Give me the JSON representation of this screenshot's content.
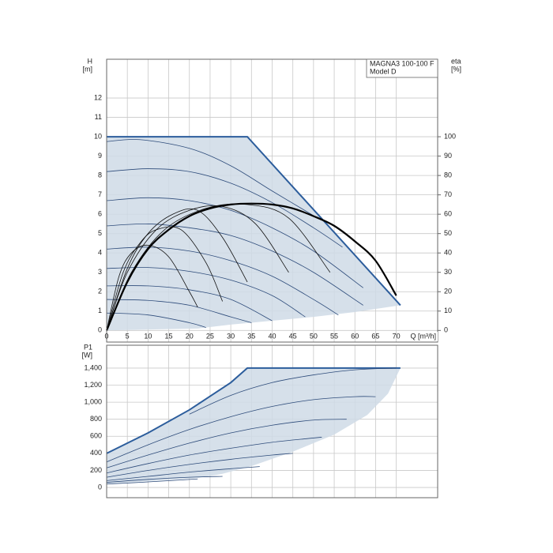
{
  "chart_data": [
    {
      "type": "line",
      "annotation": [
        "MAGNA3 100-100 F",
        "Model D"
      ],
      "y_label": [
        "H",
        "[m]"
      ],
      "y2_label": [
        "eta",
        "[%]"
      ],
      "x_label": "Q [m³/h]",
      "xlim": [
        0,
        80
      ],
      "xticks": [
        0,
        5,
        10,
        15,
        20,
        25,
        30,
        35,
        40,
        45,
        50,
        55,
        60,
        65,
        70
      ],
      "ylim": [
        -0.6,
        14
      ],
      "yticks": [
        0,
        1,
        2,
        3,
        4,
        5,
        6,
        7,
        8,
        9,
        10,
        11,
        12
      ],
      "y2lim": [
        -6,
        140
      ],
      "y2ticks": [
        0,
        10,
        20,
        30,
        40,
        50,
        60,
        70,
        80,
        90,
        100
      ],
      "grid": true,
      "series": [
        {
          "style": "area",
          "color": "#2c5d9c",
          "fill": "#cfdbe6",
          "x": [
            0,
            34,
            71,
            60,
            50,
            40,
            30,
            22,
            0
          ],
          "values": [
            10,
            10,
            1.3,
            0.95,
            0.7,
            0.5,
            0.3,
            0.1,
            0
          ]
        },
        {
          "style": "thin",
          "color": "#2d4b7a",
          "x": [
            0,
            8,
            20,
            30,
            40,
            51
          ],
          "values": [
            9.75,
            9.85,
            9.4,
            8.5,
            7.2,
            5.8
          ]
        },
        {
          "style": "thin",
          "color": "#2d4b7a",
          "x": [
            0,
            10,
            20,
            30,
            40,
            50,
            57
          ],
          "values": [
            8.2,
            8.35,
            8.2,
            7.6,
            6.6,
            5.3,
            4.3
          ]
        },
        {
          "style": "thin",
          "color": "#2d4b7a",
          "x": [
            0,
            10,
            20,
            30,
            40,
            50,
            62
          ],
          "values": [
            6.7,
            6.85,
            6.7,
            6.2,
            5.3,
            4.1,
            2.2
          ]
        },
        {
          "style": "thin",
          "color": "#2d4b7a",
          "x": [
            0,
            10,
            20,
            30,
            40,
            50,
            62
          ],
          "values": [
            5.4,
            5.5,
            5.3,
            4.9,
            4.1,
            3.0,
            1.3
          ]
        },
        {
          "style": "thin",
          "color": "#2d4b7a",
          "x": [
            0,
            10,
            20,
            30,
            40,
            50,
            56
          ],
          "values": [
            4.2,
            4.3,
            4.1,
            3.6,
            2.8,
            1.6,
            0.8
          ]
        },
        {
          "style": "thin",
          "color": "#2d4b7a",
          "x": [
            0,
            10,
            20,
            30,
            40,
            48
          ],
          "values": [
            3.2,
            3.25,
            3.05,
            2.6,
            1.8,
            0.7
          ]
        },
        {
          "style": "thin",
          "color": "#2d4b7a",
          "x": [
            0,
            10,
            20,
            30,
            40
          ],
          "values": [
            2.3,
            2.3,
            2.1,
            1.6,
            0.5
          ]
        },
        {
          "style": "thin",
          "color": "#2d4b7a",
          "x": [
            0,
            10,
            20,
            30,
            35
          ],
          "values": [
            1.6,
            1.55,
            1.3,
            0.7,
            0.4
          ]
        },
        {
          "style": "thin",
          "color": "#2d4b7a",
          "x": [
            0,
            10,
            20,
            24
          ],
          "values": [
            0.9,
            0.8,
            0.4,
            0.15
          ]
        },
        {
          "style": "thin",
          "color": "#111111",
          "axis": "y2",
          "x": [
            0,
            3,
            6,
            10,
            15,
            20,
            22
          ],
          "values": [
            0,
            28,
            40,
            44,
            38,
            20,
            12
          ]
        },
        {
          "style": "thin",
          "color": "#111111",
          "axis": "y2",
          "x": [
            0,
            4,
            8,
            12,
            18,
            24,
            28
          ],
          "values": [
            0,
            30,
            45,
            52,
            52,
            35,
            15
          ]
        },
        {
          "style": "thin",
          "color": "#111111",
          "axis": "y2",
          "x": [
            0,
            5,
            10,
            16,
            22,
            28,
            34
          ],
          "values": [
            0,
            32,
            50,
            60,
            62,
            48,
            25
          ]
        },
        {
          "style": "thin",
          "color": "#111111",
          "axis": "y2",
          "x": [
            0,
            5,
            12,
            20,
            28,
            36,
            44
          ],
          "values": [
            0,
            30,
            52,
            62,
            64,
            55,
            30
          ]
        },
        {
          "style": "thin",
          "color": "#111111",
          "axis": "y2",
          "x": [
            0,
            6,
            14,
            24,
            34,
            44,
            54
          ],
          "values": [
            0,
            30,
            52,
            63,
            65,
            58,
            30
          ]
        },
        {
          "style": "thick",
          "color": "#000000",
          "axis": "y2",
          "x": [
            0,
            5,
            10,
            15,
            20,
            25,
            30,
            35,
            40,
            45,
            50,
            55,
            60,
            65,
            70
          ],
          "values": [
            0,
            25,
            42,
            52,
            59,
            63,
            65,
            65.5,
            65,
            63,
            59,
            54,
            46,
            36,
            18
          ]
        }
      ]
    },
    {
      "type": "line",
      "y_label": [
        "P1",
        "[W]"
      ],
      "xlim": [
        0,
        80
      ],
      "ylim": [
        -120,
        1668
      ],
      "yticks": [
        0,
        200,
        400,
        600,
        800,
        {
          "value": 1000,
          "label": "1,000"
        },
        {
          "value": 1200,
          "label": "1,200"
        },
        {
          "value": 1400,
          "label": "1,400"
        }
      ],
      "grid": true,
      "series": [
        {
          "style": "area",
          "color": "#2c5d9c",
          "fill": "#cfdbe6",
          "x": [
            0,
            10,
            20,
            30,
            34,
            71,
            68,
            63,
            55,
            45,
            35,
            28,
            22,
            0
          ],
          "values": [
            400,
            640,
            910,
            1230,
            1400,
            1400,
            1100,
            850,
            620,
            420,
            250,
            160,
            110,
            40
          ]
        },
        {
          "style": "thin",
          "color": "#2d4b7a",
          "x": [
            20,
            30,
            40,
            50,
            60,
            70
          ],
          "values": [
            860,
            1080,
            1230,
            1320,
            1380,
            1400
          ]
        },
        {
          "style": "thin",
          "color": "#2d4b7a",
          "x": [
            0,
            10,
            20,
            30,
            40,
            50,
            60,
            65
          ],
          "values": [
            300,
            500,
            680,
            830,
            950,
            1030,
            1065,
            1065
          ]
        },
        {
          "style": "thin",
          "color": "#2d4b7a",
          "x": [
            0,
            10,
            20,
            30,
            40,
            50,
            58
          ],
          "values": [
            230,
            380,
            520,
            640,
            730,
            790,
            800
          ]
        },
        {
          "style": "thin",
          "color": "#2d4b7a",
          "x": [
            0,
            10,
            20,
            30,
            40,
            50,
            52
          ],
          "values": [
            170,
            280,
            380,
            460,
            530,
            580,
            590
          ]
        },
        {
          "style": "thin",
          "color": "#2d4b7a",
          "x": [
            0,
            10,
            20,
            30,
            40,
            45
          ],
          "values": [
            120,
            200,
            270,
            330,
            380,
            400
          ]
        },
        {
          "style": "thin",
          "color": "#2d4b7a",
          "x": [
            0,
            10,
            20,
            30,
            37
          ],
          "values": [
            80,
            130,
            180,
            220,
            245
          ]
        },
        {
          "style": "thin",
          "color": "#2d4b7a",
          "x": [
            0,
            10,
            20,
            28
          ],
          "values": [
            60,
            95,
            120,
            130
          ]
        },
        {
          "style": "thin",
          "color": "#2d4b7a",
          "x": [
            0,
            10,
            22
          ],
          "values": [
            40,
            65,
            100
          ]
        }
      ]
    }
  ]
}
